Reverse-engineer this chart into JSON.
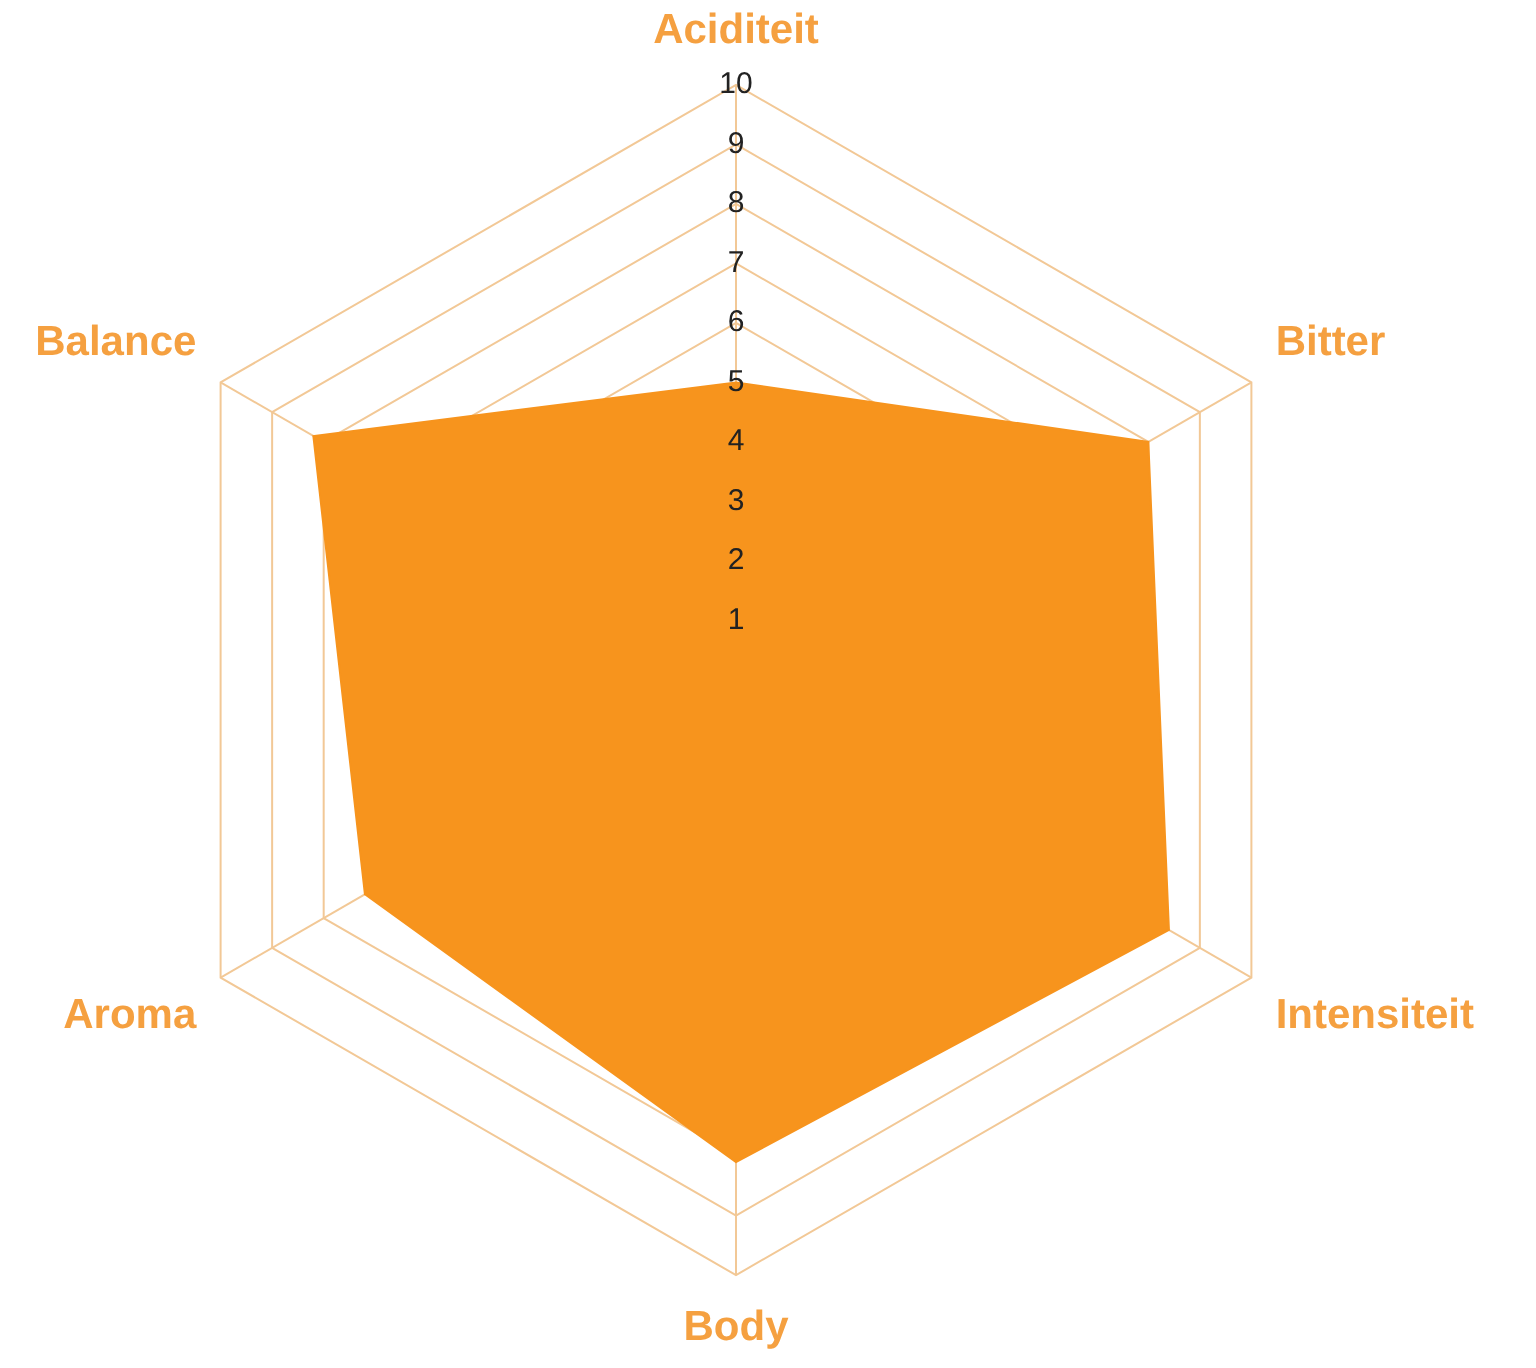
{
  "chart_data": {
    "type": "radar",
    "categories": [
      "Aciditeit",
      "Bitter",
      "Intensiteit",
      "Body",
      "Aroma",
      "Balance"
    ],
    "series": [
      {
        "color": "#f7941d",
        "values": [
          5,
          8,
          8.4,
          8.1,
          7.2,
          8.2
        ]
      }
    ],
    "ylim": [
      0,
      10
    ],
    "yticks": [
      1,
      2,
      3,
      4,
      5,
      6,
      7,
      8,
      9,
      10
    ],
    "grid": true
  }
}
